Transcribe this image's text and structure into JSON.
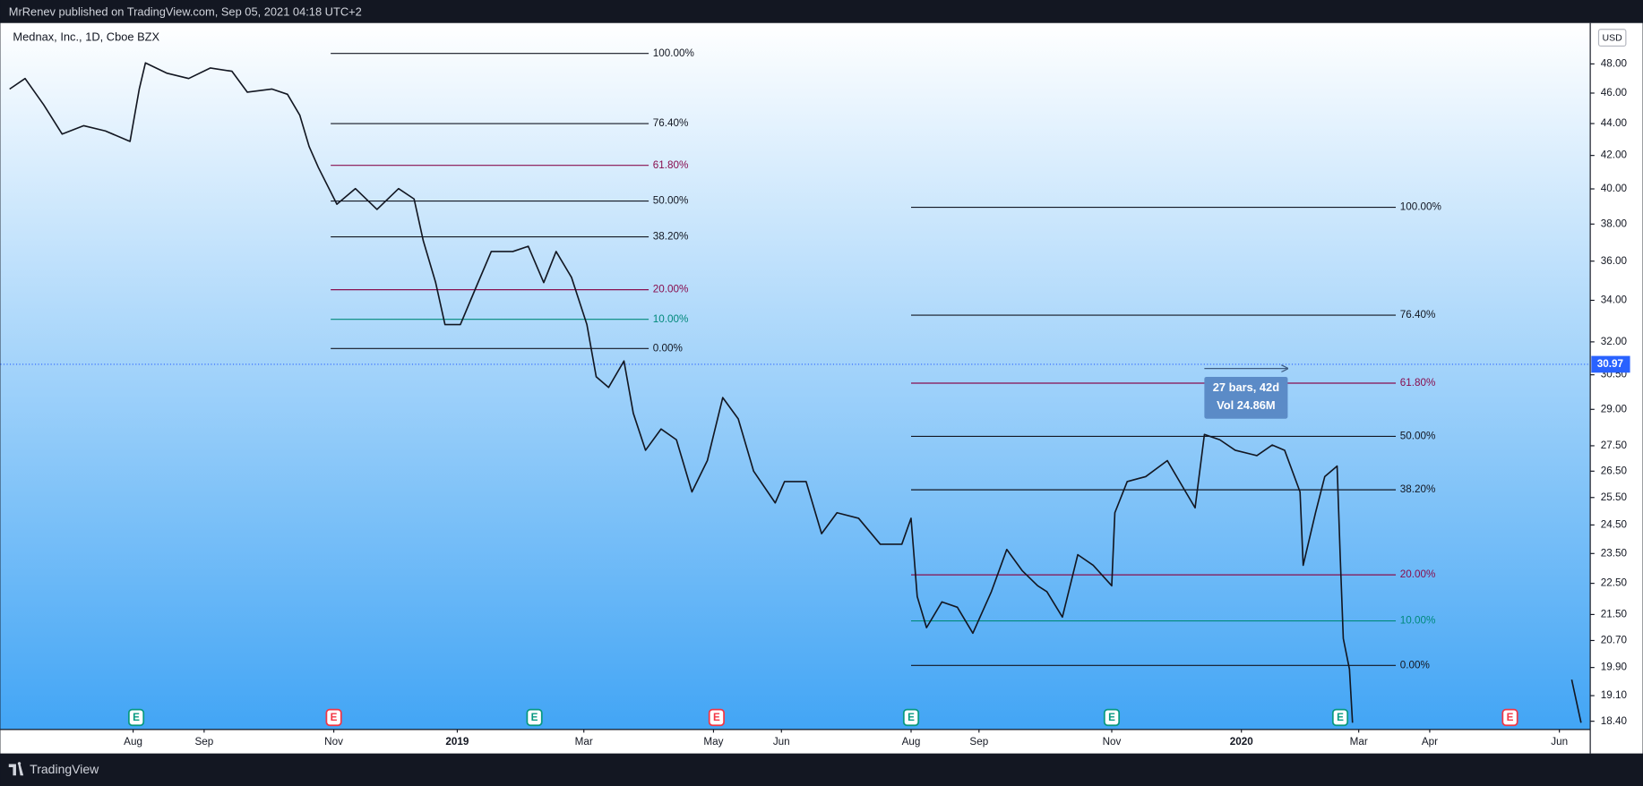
{
  "header": {
    "text": "MrRenev published on TradingView.com, Sep 05, 2021 04:18 UTC+2"
  },
  "footer": {
    "brand": "TradingView"
  },
  "chart_data": {
    "type": "line",
    "title": "Mednax, Inc., 1D, Cboe BZX",
    "currency": "USD",
    "log_scale": true,
    "grid": false,
    "xlim": [
      0,
      515
    ],
    "ylim": [
      18.18,
      50.95
    ],
    "xticks": [
      {
        "value": 43,
        "label": "Aug"
      },
      {
        "value": 66,
        "label": "Sep"
      },
      {
        "value": 108,
        "label": "Nov"
      },
      {
        "value": 148,
        "label": "2019"
      },
      {
        "value": 189,
        "label": "Mar"
      },
      {
        "value": 231,
        "label": "May"
      },
      {
        "value": 253,
        "label": "Jun"
      },
      {
        "value": 295,
        "label": "Aug"
      },
      {
        "value": 317,
        "label": "Sep"
      },
      {
        "value": 360,
        "label": "Nov"
      },
      {
        "value": 402,
        "label": "2020"
      },
      {
        "value": 440,
        "label": "Mar"
      },
      {
        "value": 463,
        "label": "Apr"
      },
      {
        "value": 505,
        "label": "Jun"
      }
    ],
    "yticks": [
      {
        "value": 48,
        "label": "48.00"
      },
      {
        "value": 46,
        "label": "46.00"
      },
      {
        "value": 44,
        "label": "44.00"
      },
      {
        "value": 42,
        "label": "42.00"
      },
      {
        "value": 40,
        "label": "40.00"
      },
      {
        "value": 38,
        "label": "38.00"
      },
      {
        "value": 36,
        "label": "36.00"
      },
      {
        "value": 34,
        "label": "34.00"
      },
      {
        "value": 32,
        "label": "32.00"
      },
      {
        "value": 30.5,
        "label": "30.50"
      },
      {
        "value": 29,
        "label": "29.00"
      },
      {
        "value": 27.5,
        "label": "27.50"
      },
      {
        "value": 26.5,
        "label": "26.50"
      },
      {
        "value": 25.5,
        "label": "25.50"
      },
      {
        "value": 24.5,
        "label": "24.50"
      },
      {
        "value": 23.5,
        "label": "23.50"
      },
      {
        "value": 22.5,
        "label": "22.50"
      },
      {
        "value": 21.5,
        "label": "21.50"
      },
      {
        "value": 20.7,
        "label": "20.70"
      },
      {
        "value": 19.9,
        "label": "19.90"
      },
      {
        "value": 19.1,
        "label": "19.10"
      },
      {
        "value": 18.4,
        "label": "18.40"
      }
    ],
    "x": [
      3,
      8,
      14,
      20,
      27,
      34,
      42,
      45,
      47,
      54,
      61,
      68,
      75,
      80,
      88,
      93,
      97,
      100,
      103,
      109,
      115,
      122,
      129,
      134,
      137,
      141,
      144,
      149,
      154,
      159,
      166,
      171,
      176,
      180,
      185,
      190,
      193,
      197,
      202,
      205,
      209,
      214,
      219,
      224,
      229,
      234,
      239,
      244,
      251,
      254,
      261,
      266,
      271,
      278,
      285,
      292,
      295,
      297,
      300,
      305,
      310,
      315,
      321,
      326,
      331,
      336,
      339,
      344,
      349,
      354,
      360,
      361,
      365,
      371,
      378,
      383,
      387,
      390,
      395,
      400,
      407,
      412,
      416,
      421,
      422,
      426,
      429,
      433,
      434,
      435,
      437,
      438,
      470,
      509,
      512
    ],
    "series": [
      {
        "color": "#131722",
        "values": [
          46.27,
          46.99,
          45.23,
          43.33,
          43.86,
          43.53,
          42.87,
          46.27,
          48.07,
          47.35,
          46.99,
          47.71,
          47.49,
          46.06,
          46.27,
          45.92,
          44.54,
          42.55,
          41.27,
          39.12,
          40.02,
          38.82,
          40.02,
          39.42,
          37.08,
          34.89,
          32.82,
          32.82,
          34.62,
          36.51,
          36.51,
          36.79,
          34.89,
          36.51,
          35.16,
          32.82,
          30.41,
          29.94,
          31.12,
          28.84,
          27.32,
          28.18,
          27.74,
          25.71,
          26.91,
          29.5,
          28.6,
          26.5,
          25.3,
          26.1,
          26.1,
          24.19,
          24.94,
          24.74,
          23.82,
          23.82,
          24.74,
          22.07,
          21.09,
          21.9,
          21.73,
          20.92,
          22.23,
          23.64,
          22.92,
          22.42,
          22.23,
          21.42,
          23.46,
          23.1,
          22.42,
          24.94,
          26.1,
          26.29,
          26.91,
          25.9,
          25.12,
          27.96,
          27.74,
          27.32,
          27.11,
          27.53,
          27.32,
          25.71,
          23.1,
          24.94,
          26.29,
          26.7,
          23.46,
          20.76,
          19.85,
          18.36,
          null,
          19.55,
          18.36
        ]
      }
    ],
    "last_price": 30.97,
    "last_price_color": "#2962ff",
    "fib_retracements": [
      {
        "start": 107,
        "end": 210,
        "levels": [
          {
            "label": "100.00%",
            "price": 48.74,
            "color": "#131722"
          },
          {
            "label": "76.40%",
            "price": 44.0,
            "color": "#131722"
          },
          {
            "label": "61.80%",
            "price": 41.4,
            "color": "#880e4f"
          },
          {
            "label": "50.00%",
            "price": 39.3,
            "color": "#131722"
          },
          {
            "label": "38.20%",
            "price": 37.3,
            "color": "#131722"
          },
          {
            "label": "20.00%",
            "price": 34.53,
            "color": "#880e4f"
          },
          {
            "label": "10.00%",
            "price": 33.07,
            "color": "#00897b"
          },
          {
            "label": "0.00%",
            "price": 31.69,
            "color": "#131722"
          }
        ]
      },
      {
        "start": 295,
        "end": 452,
        "levels": [
          {
            "label": "100.00%",
            "price": 38.94,
            "color": "#131722"
          },
          {
            "label": "76.40%",
            "price": 33.27,
            "color": "#131722"
          },
          {
            "label": "61.80%",
            "price": 30.13,
            "color": "#880e4f"
          },
          {
            "label": "50.00%",
            "price": 27.88,
            "color": "#131722"
          },
          {
            "label": "38.20%",
            "price": 25.79,
            "color": "#131722"
          },
          {
            "label": "20.00%",
            "price": 22.78,
            "color": "#880e4f"
          },
          {
            "label": "10.00%",
            "price": 21.3,
            "color": "#00897b"
          },
          {
            "label": "0.00%",
            "price": 19.96,
            "color": "#131722"
          }
        ]
      }
    ],
    "measure": {
      "start": 390,
      "end": 417,
      "label": "27 bars, 42d",
      "volume_label": "Vol 24.86M"
    },
    "earnings": [
      {
        "x": 44,
        "label": "E",
        "color": "#089981"
      },
      {
        "x": 108,
        "label": "E",
        "color": "#f23645"
      },
      {
        "x": 173,
        "label": "E",
        "color": "#089981"
      },
      {
        "x": 232,
        "label": "E",
        "color": "#f23645"
      },
      {
        "x": 295,
        "label": "E",
        "color": "#089981"
      },
      {
        "x": 360,
        "label": "E",
        "color": "#089981"
      },
      {
        "x": 434,
        "label": "E",
        "color": "#089981"
      },
      {
        "x": 489,
        "label": "E",
        "color": "#f23645"
      }
    ]
  }
}
